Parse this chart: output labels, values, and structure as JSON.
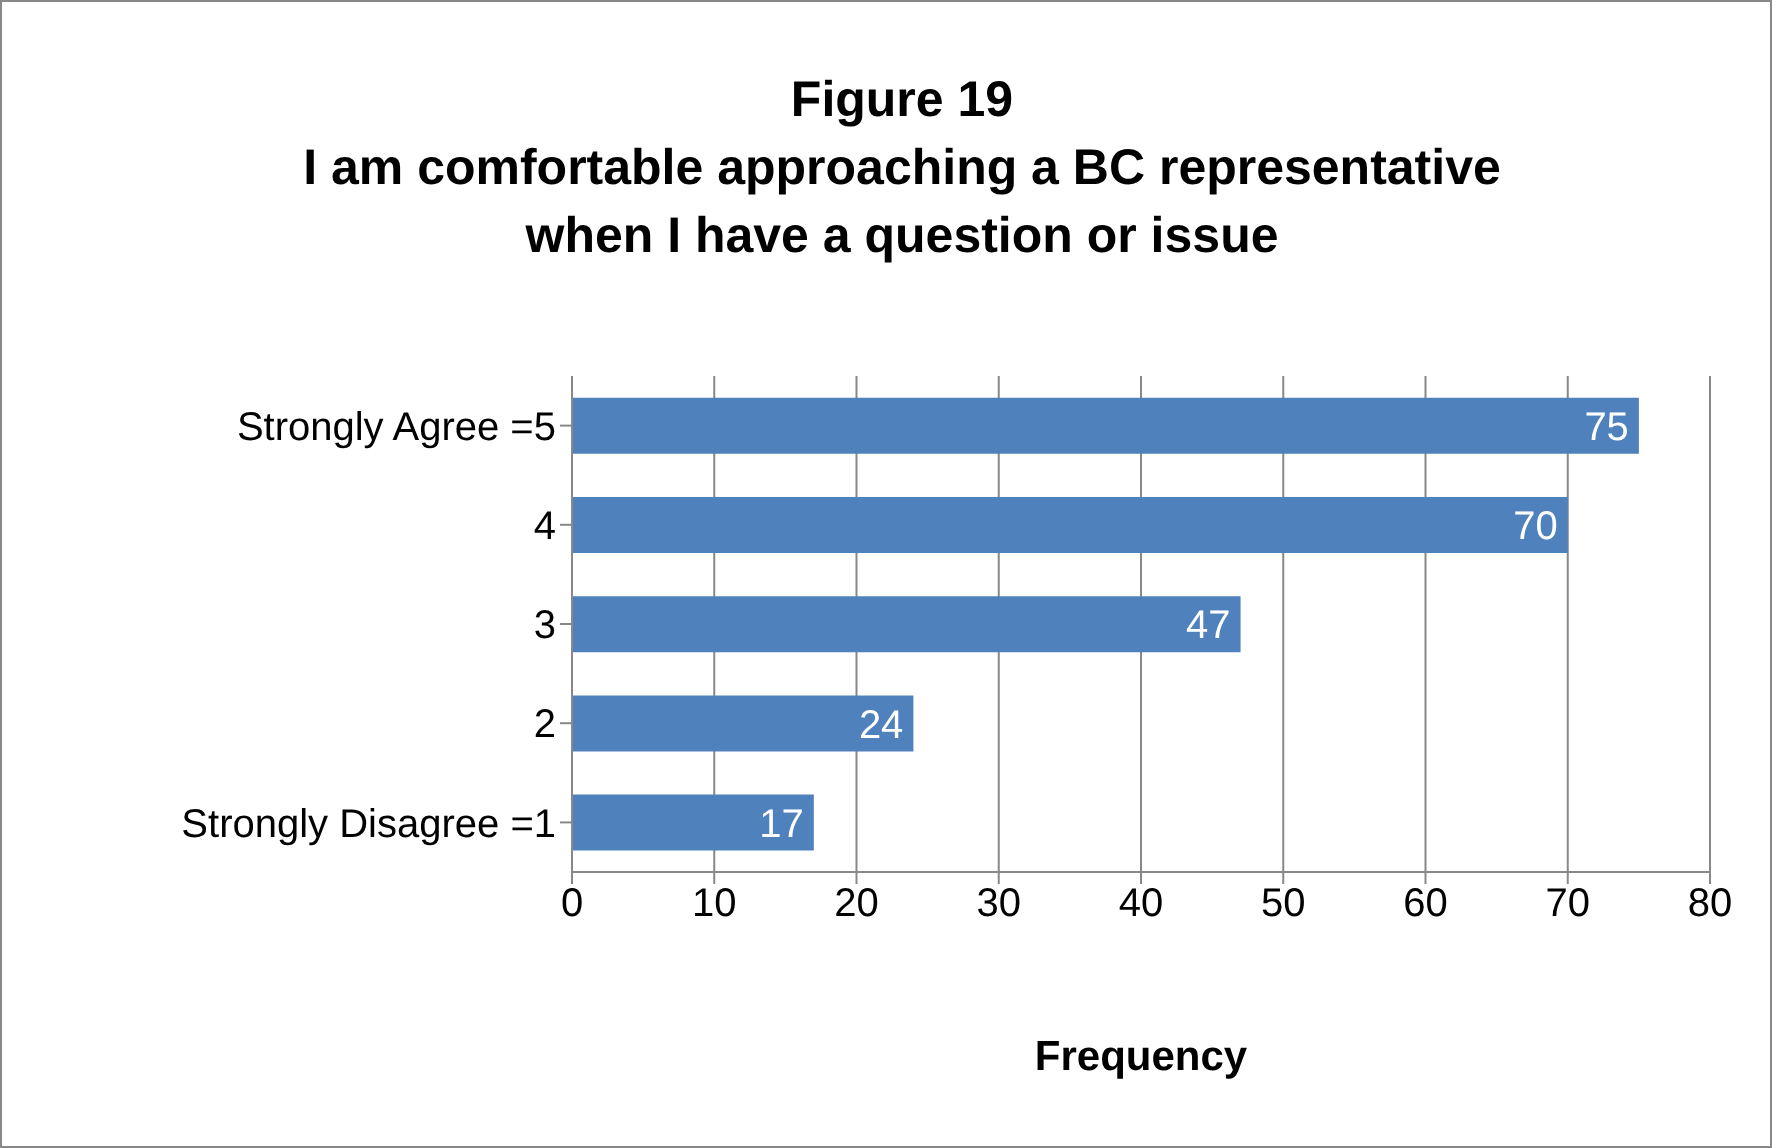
{
  "chart_data": {
    "type": "bar",
    "orientation": "horizontal",
    "title": "Figure 19\nI am comfortable approaching a BC representative\nwhen I have a question or issue",
    "xlabel": "Frequency",
    "categories": [
      "Strongly Agree =5",
      "4",
      "3",
      "2",
      "Strongly Disagree =1"
    ],
    "values": [
      75,
      70,
      47,
      24,
      17
    ],
    "color": "#4f81bd",
    "data_labels": true,
    "xlim": [
      0,
      80
    ],
    "xticks": [
      0,
      10,
      20,
      30,
      40,
      50,
      60,
      70,
      80
    ],
    "grid": "x"
  }
}
